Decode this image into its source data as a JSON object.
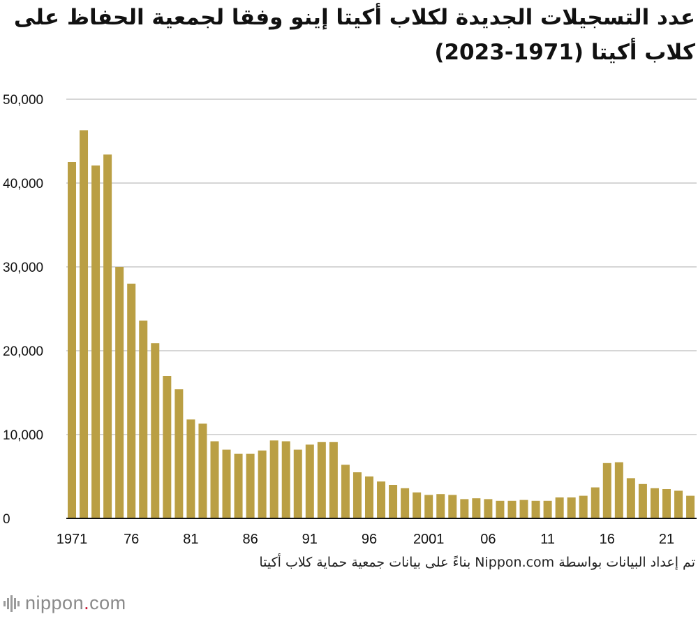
{
  "page": {
    "title": "عدد التسجيلات الجديدة لكلاب أكيتا إينو وفقا لجمعية الحفاظ على كلاب أكيتا (1971-2023)",
    "source": "تم إعداد البيانات بواسطة Nippon.com  بناءً على بيانات جمعية حماية كلاب أكيتا",
    "logo": {
      "prefix": "nippon",
      "dot": ".",
      "suffix": "com"
    }
  },
  "colors": {
    "bar": "#BA9F44",
    "grid": "#C8C8C8",
    "axis": "#111111",
    "logo_accent": "#C8102E"
  },
  "chart_data": {
    "type": "bar",
    "title": "عدد التسجيلات الجديدة لكلاب أكيتا إينو وفقا لجمعية الحفاظ على كلاب أكيتا (1971-2023)",
    "categories": [
      1971,
      1972,
      1973,
      1974,
      1975,
      1976,
      1977,
      1978,
      1979,
      1980,
      1981,
      1982,
      1983,
      1984,
      1985,
      1986,
      1987,
      1988,
      1989,
      1990,
      1991,
      1992,
      1993,
      1994,
      1995,
      1996,
      1997,
      1998,
      1999,
      2000,
      2001,
      2002,
      2003,
      2004,
      2005,
      2006,
      2007,
      2008,
      2009,
      2010,
      2011,
      2012,
      2013,
      2014,
      2015,
      2016,
      2017,
      2018,
      2019,
      2020,
      2021,
      2022,
      2023
    ],
    "values": [
      42500,
      46300,
      42100,
      43400,
      30000,
      28000,
      23600,
      20900,
      17000,
      15400,
      11800,
      11300,
      9200,
      8200,
      7700,
      7700,
      8100,
      9300,
      9200,
      8200,
      8800,
      9100,
      9100,
      6400,
      5500,
      5000,
      4400,
      4000,
      3600,
      3100,
      2800,
      2900,
      2800,
      2300,
      2400,
      2300,
      2100,
      2100,
      2200,
      2100,
      2100,
      2500,
      2500,
      2700,
      3700,
      6600,
      6700,
      4800,
      4100,
      3600,
      3500,
      3300,
      2700
    ],
    "x_tick_labels": [
      {
        "year": 1971,
        "label": "1971"
      },
      {
        "year": 1976,
        "label": "76"
      },
      {
        "year": 1981,
        "label": "81"
      },
      {
        "year": 1986,
        "label": "86"
      },
      {
        "year": 1991,
        "label": "91"
      },
      {
        "year": 1996,
        "label": "96"
      },
      {
        "year": 2001,
        "label": "2001"
      },
      {
        "year": 2006,
        "label": "06"
      },
      {
        "year": 2011,
        "label": "11"
      },
      {
        "year": 2016,
        "label": "16"
      },
      {
        "year": 2021,
        "label": "21"
      }
    ],
    "y_ticks": [
      0,
      10000,
      20000,
      30000,
      40000,
      50000
    ],
    "y_tick_labels": [
      "0",
      "10,000",
      "20,000",
      "30,000",
      "40,000",
      "50,000"
    ],
    "ylim": [
      0,
      50000
    ],
    "grid": true,
    "legend": "none",
    "xlabel": "",
    "ylabel": ""
  }
}
